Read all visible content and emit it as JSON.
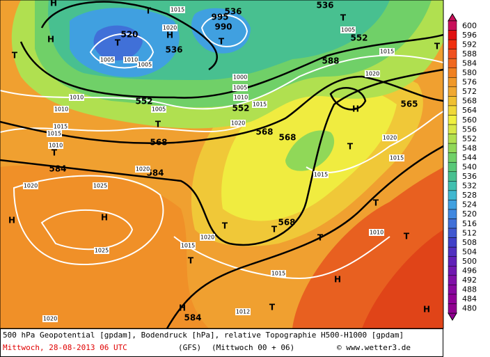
{
  "map": {
    "labels": [
      "536",
      "536",
      "536",
      "520",
      "552",
      "552",
      "552",
      "568",
      "568",
      "568",
      "584",
      "584",
      "588",
      "565",
      "568",
      "584",
      "1005",
      "1010",
      "1005",
      "1020",
      "1015",
      "1000",
      "1005",
      "1010",
      "1015",
      "1005",
      "1020",
      "1010",
      "1010",
      "1015",
      "1015",
      "1010",
      "1020",
      "1025",
      "1025",
      "1020",
      "1015",
      "1015",
      "1015",
      "1020",
      "1015",
      "1010",
      "1020",
      "1005",
      "1015",
      "1020",
      "1012",
      "990",
      "995",
      "1020",
      "H",
      "T",
      "H",
      "T",
      "T",
      "T",
      "H",
      "T",
      "T",
      "T",
      "H",
      "T",
      "T",
      "T",
      "T",
      "T",
      "T",
      "H",
      "T",
      "H",
      "H",
      "H",
      "T",
      "H",
      "T"
    ]
  },
  "legend": {
    "levels": [
      600,
      596,
      592,
      588,
      584,
      580,
      576,
      572,
      568,
      564,
      560,
      556,
      552,
      548,
      544,
      540,
      536,
      532,
      528,
      524,
      520,
      516,
      512,
      508,
      504,
      500,
      496,
      492,
      488,
      484,
      480
    ],
    "colors": [
      "#c8105a",
      "#e01010",
      "#f03010",
      "#f05020",
      "#f06820",
      "#f08020",
      "#f09828",
      "#f0a830",
      "#f0c030",
      "#f0d838",
      "#f0f040",
      "#d8e848",
      "#b0e050",
      "#90d858",
      "#70d068",
      "#58c878",
      "#48c090",
      "#40c0b0",
      "#40b8d0",
      "#40a0e0",
      "#4088e0",
      "#4070d8",
      "#4058d0",
      "#4040c8",
      "#5030c0",
      "#6020b8",
      "#7018b0",
      "#8010a8",
      "#8808a0",
      "#900098",
      "#900090"
    ]
  },
  "footer": {
    "title": "500 hPa Geopotential [gpdam], Bodendruck [hPa], relative Topographie H500-H1000 [gpdam]",
    "date": "Mittwoch, 28-08-2013  06 UTC",
    "model": "(GFS)",
    "run": "(Mittwoch 00 + 06)",
    "credit": "© www.wetter3.de"
  }
}
